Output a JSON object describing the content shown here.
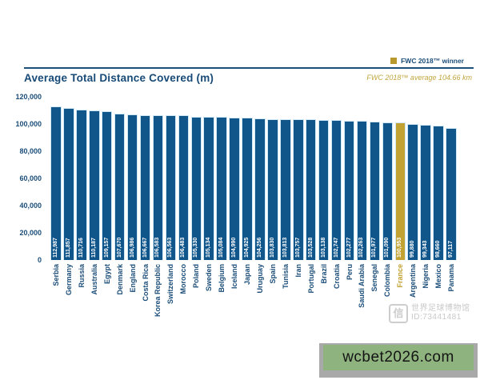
{
  "legend": {
    "label": "FWC 2018™ winner",
    "swatch_color": "#b8992e"
  },
  "header": {
    "title": "Average Total Distance Covered (m)",
    "average_note": "FWC 2018™ average 104.66 km"
  },
  "watermark": {
    "logo_char": "信",
    "line1": "世界足球博物馆",
    "line2": "ID:73441481"
  },
  "ad": {
    "text": "wcbet2026.com"
  },
  "chart_data": {
    "type": "bar",
    "title": "Average Total Distance Covered (m)",
    "unit": "m",
    "categories": [
      "Serbia",
      "Germany",
      "Russia",
      "Australia",
      "Egypt",
      "Denmark",
      "England",
      "Costa Rica",
      "Korea Republic",
      "Switzerland",
      "Morocco",
      "Poland",
      "Sweden",
      "Belgium",
      "Iceland",
      "Japan",
      "Uruguay",
      "Spain",
      "Tunisia",
      "Iran",
      "Portugal",
      "Brazil",
      "Croatia",
      "Peru",
      "Saudi Arabia",
      "Senegal",
      "Colombia",
      "France",
      "Argentina",
      "Nigeria",
      "Mexico",
      "Panama"
    ],
    "values": [
      112987,
      111857,
      110716,
      110187,
      109157,
      107670,
      106986,
      106667,
      106583,
      106563,
      106483,
      105330,
      105134,
      105084,
      104990,
      104925,
      104256,
      103830,
      103813,
      103757,
      103528,
      103138,
      102747,
      102277,
      102263,
      101977,
      101090,
      100953,
      99880,
      99343,
      98660,
      97117
    ],
    "highlight_category": "France",
    "highlight_meaning": "FWC 2018™ winner",
    "ylim": [
      0,
      120000
    ],
    "yticks": [
      0,
      20000,
      40000,
      60000,
      80000,
      100000,
      120000
    ],
    "grid": false,
    "legend_position": "top-right",
    "colors": {
      "bar": "#10568b",
      "highlight_bar": "#c1a233",
      "bar_outline": "#cfe9f6",
      "value_label": "#ffffff",
      "axis_text": "#1b4d79",
      "highlight_axis_text": "#c2a132"
    }
  }
}
